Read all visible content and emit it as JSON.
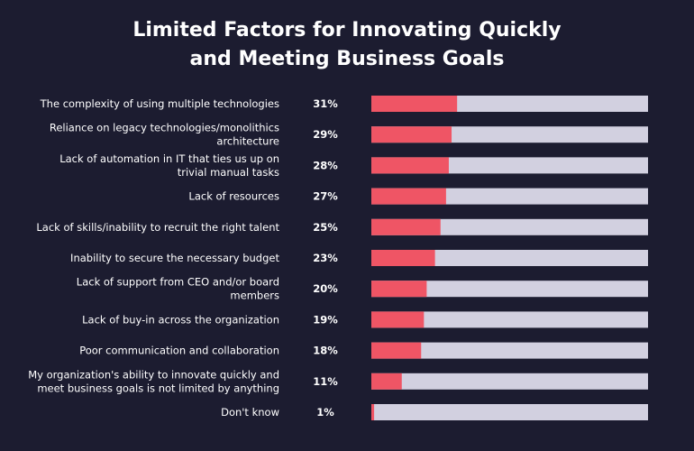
{
  "chart_data": {
    "type": "bar",
    "orientation": "horizontal",
    "stacked_remainder": true,
    "title": [
      "Limited Factors for Innovating Quickly",
      "and Meeting Business Goals"
    ],
    "categories": [
      [
        "The complexity of using multiple technologies"
      ],
      [
        "Reliance on legacy technologies/monolithics",
        "architecture"
      ],
      [
        "Lack of automation in IT that ties us up on",
        "trivial manual tasks"
      ],
      [
        "Lack of resources"
      ],
      [
        "Lack of skills/inability to recruit the right talent"
      ],
      [
        "Inability to secure the necessary budget"
      ],
      [
        "Lack of support from CEO and/or board",
        "members"
      ],
      [
        "Lack of buy-in across the organization"
      ],
      [
        "Poor communication and collaboration"
      ],
      [
        "My organization's ability to innovate quickly and",
        "meet business goals is not limited by anything"
      ],
      [
        "Don't know"
      ]
    ],
    "values": [
      31,
      29,
      28,
      27,
      25,
      23,
      20,
      19,
      18,
      11,
      1
    ],
    "value_labels": [
      "31%",
      "29%",
      "28%",
      "27%",
      "25%",
      "23%",
      "20%",
      "19%",
      "18%",
      "11%",
      "1%"
    ],
    "xlim": [
      0,
      100
    ],
    "grid": false,
    "colors": {
      "bar": "#ef5565",
      "track": "#d2d0e0",
      "background": "#1c1c30",
      "text": "#ffffff"
    }
  }
}
